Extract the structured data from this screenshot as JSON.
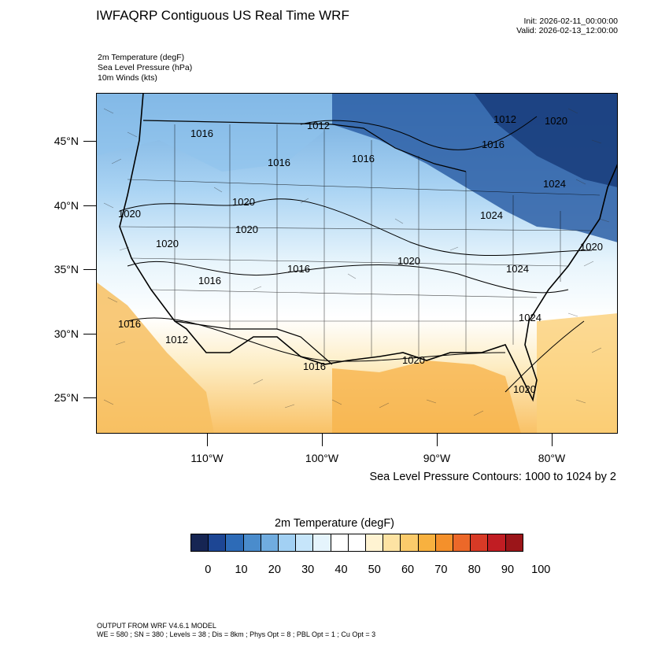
{
  "header": {
    "title": "IWFAQRP Contiguous US Real Time WRF",
    "init": "Init: 2026-02-11_00:00:00",
    "valid": "Valid: 2026-02-13_12:00:00"
  },
  "fields": {
    "temp": "2m Temperature   (degF)",
    "slp": "Sea Level Pressure   (hPa)",
    "wind": "10m Winds   (kts)"
  },
  "axes": {
    "lat_labels": [
      "45°N",
      "40°N",
      "35°N",
      "30°N",
      "25°N"
    ],
    "lon_labels": [
      "110°W",
      "100°W",
      "90°W",
      "80°W"
    ]
  },
  "contours": {
    "note": "Sea Level Pressure Contours: 1000 to 1024 by 2",
    "labels": [
      "1012",
      "1016",
      "1016",
      "1016",
      "1020",
      "1016",
      "1012",
      "1020",
      "1020",
      "1016",
      "1020",
      "1020",
      "1016",
      "1020",
      "1024",
      "1020",
      "1024",
      "1016",
      "1012",
      "1016",
      "1020",
      "1020",
      "1024",
      "1024"
    ]
  },
  "colorbar": {
    "title": "2m Temperature  (degF)",
    "labels": [
      "0",
      "10",
      "20",
      "30",
      "40",
      "50",
      "60",
      "70",
      "80",
      "90",
      "100"
    ],
    "colors": [
      "#162553",
      "#1d4694",
      "#2d6bb7",
      "#4a8ccc",
      "#70acdf",
      "#a2d0f3",
      "#c6e5fa",
      "#e5f4fc",
      "#ffffff",
      "#ffffff",
      "#fff3d2",
      "#fde3a3",
      "#fbcb6b",
      "#f8b13f",
      "#f4902b",
      "#ec6829",
      "#d83a26",
      "#c11d23",
      "#9b1519"
    ]
  },
  "footer": {
    "line1": "OUTPUT FROM WRF V4.6.1 MODEL",
    "line2": "WE = 580 ; SN = 380 ; Levels = 38 ; Dis = 8km ; Phys Opt = 8 ; PBL Opt = 1 ; Cu Opt = 3"
  }
}
